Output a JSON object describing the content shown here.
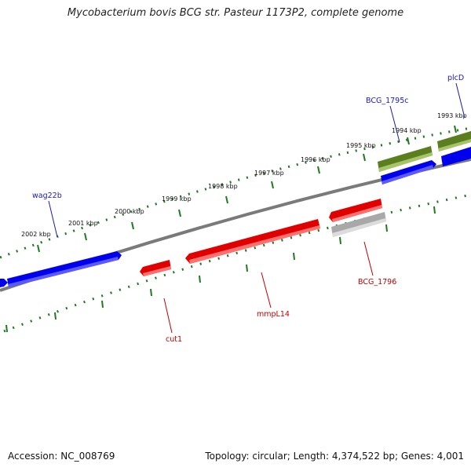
{
  "title": "Mycobacterium bovis BCG str. Pasteur 1173P2, complete genome",
  "footer": {
    "accession": "Accession: NC_008769",
    "topology": "Topology: circular; Length: 4,374,522 bp; Genes: 4,001"
  },
  "ticks": [
    {
      "label": "1993 kbp"
    },
    {
      "label": "1994 kbp"
    },
    {
      "label": "1995 kbp"
    },
    {
      "label": "1996 kbp"
    },
    {
      "label": "1997 kbp"
    },
    {
      "label": "1998 kbp"
    },
    {
      "label": "1999 kbp"
    },
    {
      "label": "2000 kbp"
    },
    {
      "label": "2001 kbp"
    },
    {
      "label": "2002 kbp"
    }
  ],
  "gene_labels": [
    {
      "name": "wag22b",
      "color": "#1a1ab8"
    },
    {
      "name": "BCG_1795c",
      "color": "#1a1ab8"
    },
    {
      "name": "plcD",
      "color": "#1a1ab8"
    },
    {
      "name": "cut1",
      "color": "#c00000"
    },
    {
      "name": "mmpL14",
      "color": "#c00000"
    },
    {
      "name": "BCG_1796",
      "color": "#c00000"
    }
  ],
  "colors": {
    "forward_gene": "#0000ff",
    "reverse_gene": "#ee0000",
    "olive_gene": "#6b8e23",
    "pseudo_gene": "#b0b0b0",
    "backbone": "#808080",
    "tick": "#1f7a1f"
  }
}
